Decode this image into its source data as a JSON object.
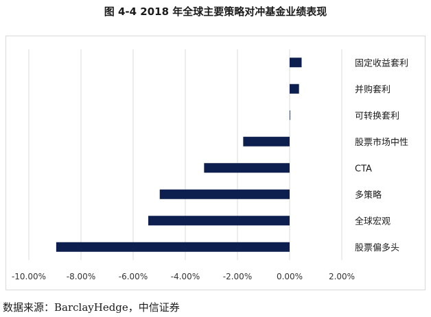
{
  "page": {
    "title": "图 4-4 2018 年全球主要策略对冲基金业绩表现",
    "source": "数据来源：BarclayHedge，中信证券"
  },
  "chart_data": {
    "type": "bar",
    "orientation": "horizontal",
    "title": "图 4-4 2018 年全球主要策略对冲基金业绩表现",
    "categories": [
      "固定收益套利",
      "并购套利",
      "可转换套利",
      "股票市场中性",
      "CTA",
      "多策略",
      "全球宏观",
      "股票偏多头"
    ],
    "values": [
      0.46,
      0.36,
      0.0,
      -1.78,
      -3.28,
      -4.98,
      -5.42,
      -8.95
    ],
    "value_unit": "%",
    "xlim": [
      -10,
      2
    ],
    "x_ticks": [
      "-10.00%",
      "-8.00%",
      "-6.00%",
      "-4.00%",
      "-2.00%",
      "0.00%",
      "2.00%"
    ],
    "x_tick_values": [
      -10,
      -8,
      -6,
      -4,
      -2,
      0,
      2
    ],
    "grid": "vertical",
    "legend": "none",
    "bar_color": "#0d1f4f",
    "grid_color": "#d9d9d9"
  }
}
